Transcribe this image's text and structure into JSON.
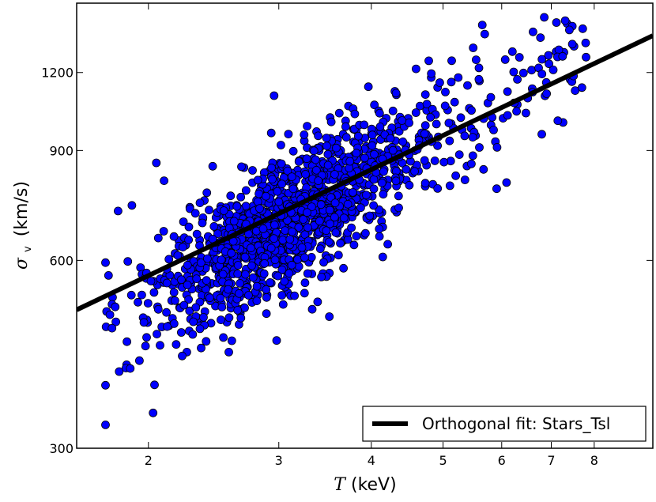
{
  "chart_data": {
    "type": "scatter",
    "x_scale": "log",
    "y_scale": "log",
    "xlim": [
      1.6,
      9.6
    ],
    "ylim": [
      300,
      1550
    ],
    "xlabel_symbol": "T",
    "xlabel_unit": "(keV)",
    "ylabel_symbol": "σ",
    "ylabel_sub": "v",
    "ylabel_unit": "(km/s)",
    "x_ticks": [
      2,
      3,
      4,
      5,
      6,
      7,
      8
    ],
    "y_ticks": [
      300,
      600,
      900,
      1200
    ],
    "grid": false,
    "legend_position": "bottom-right",
    "colors": {
      "points": "#0000ff",
      "point_edge": "#000000",
      "fit_line": "#000000"
    },
    "series": [
      {
        "kind": "points",
        "n": 1400,
        "trend_anchor_x": 3.0,
        "trend_anchor_y": 680,
        "slope_loglog": 0.7,
        "scatter_dex": 0.055,
        "x_range": [
          1.75,
          7.9
        ],
        "highlighted_points": [
          {
            "x": 1.75,
            "y": 595
          },
          {
            "x": 1.82,
            "y": 720
          },
          {
            "x": 1.9,
            "y": 735
          },
          {
            "x": 2.05,
            "y": 860
          },
          {
            "x": 2.1,
            "y": 805
          },
          {
            "x": 2.12,
            "y": 470
          },
          {
            "x": 2.18,
            "y": 440
          },
          {
            "x": 2.93,
            "y": 960
          },
          {
            "x": 3.8,
            "y": 1030
          },
          {
            "x": 4.4,
            "y": 1005
          },
          {
            "x": 5.2,
            "y": 820
          },
          {
            "x": 5.8,
            "y": 1095
          },
          {
            "x": 6.3,
            "y": 1170
          },
          {
            "x": 6.8,
            "y": 1260
          },
          {
            "x": 7.5,
            "y": 1185
          },
          {
            "x": 7.8,
            "y": 1270
          },
          {
            "x": 7.7,
            "y": 1135
          },
          {
            "x": 6.9,
            "y": 1110
          }
        ]
      },
      {
        "kind": "line",
        "name": "Orthogonal fit: Stars_Tsl",
        "x": [
          1.6,
          9.6
        ],
        "y": [
          500,
          1375
        ]
      }
    ]
  }
}
